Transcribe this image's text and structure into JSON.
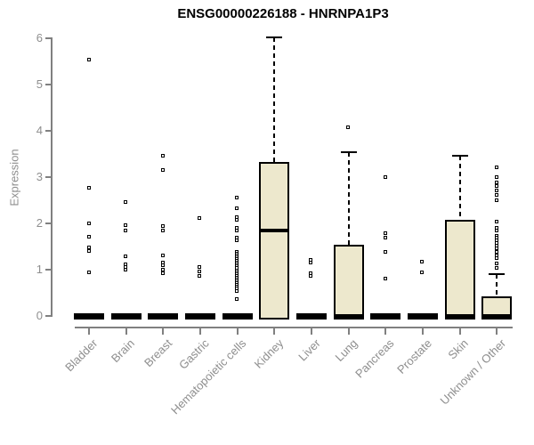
{
  "colors": {
    "box_fill": "#EDE8CD",
    "box_border": "#000000",
    "axis_line": "#808080",
    "axis_text": "#8E8E8E",
    "title_text": "#000000",
    "background": "#FFFFFF"
  },
  "chart_data": {
    "type": "boxplot",
    "title": "ENSG00000226188 - HNRNPA1P3",
    "xlabel": "",
    "ylabel": "Expression",
    "ylim": [
      0,
      6
    ],
    "yticks": [
      "0",
      "1",
      "2",
      "3",
      "4",
      "5",
      "6"
    ],
    "grid": false,
    "legend": "none",
    "categories": [
      "Bladder",
      "Brain",
      "Breast",
      "Gastric",
      "Hematopoietic cells",
      "Kidney",
      "Liver",
      "Lung",
      "Pancreas",
      "Prostate",
      "Skin",
      "Unknown / Other"
    ],
    "boxes": [
      {
        "category": "Bladder",
        "q1": 0,
        "median": 0,
        "q3": 0,
        "whisker_high": 0,
        "outliers": [
          5.52,
          2.76,
          2.0,
          1.7,
          1.48,
          1.4,
          0.93
        ]
      },
      {
        "category": "Brain",
        "q1": 0,
        "median": 0,
        "q3": 0,
        "whisker_high": 0,
        "outliers": [
          2.45,
          1.96,
          1.84,
          1.28,
          1.1,
          1.04,
          0.99
        ]
      },
      {
        "category": "Breast",
        "q1": 0,
        "median": 0,
        "q3": 0,
        "whisker_high": 0,
        "outliers": [
          3.45,
          3.14,
          1.94,
          1.84,
          1.29,
          1.14,
          1.09,
          0.99,
          0.91
        ]
      },
      {
        "category": "Gastric",
        "q1": 0,
        "median": 0,
        "q3": 0,
        "whisker_high": 0,
        "outliers": [
          2.1,
          1.05,
          0.96,
          0.86
        ]
      },
      {
        "category": "Hematopoietic cells",
        "q1": 0,
        "median": 0,
        "q3": 0,
        "whisker_high": 0,
        "outliers": [
          2.55,
          2.31,
          2.12,
          2.06,
          1.9,
          1.84,
          1.68,
          1.62,
          1.38,
          1.34,
          1.3,
          1.26,
          1.22,
          1.18,
          1.14,
          1.1,
          1.06,
          1.02,
          0.98,
          0.94,
          0.9,
          0.86,
          0.82,
          0.78,
          0.74,
          0.7,
          0.66,
          0.62,
          0.58,
          0.52,
          0.35
        ]
      },
      {
        "category": "Kidney",
        "q1": 0,
        "median": 1.84,
        "q3": 3.33,
        "whisker_high": 6.02,
        "outliers": []
      },
      {
        "category": "Liver",
        "q1": 0,
        "median": 0,
        "q3": 0,
        "whisker_high": 0,
        "outliers": [
          1.21,
          1.15,
          0.92,
          0.85
        ]
      },
      {
        "category": "Lung",
        "q1": 0,
        "median": 0,
        "q3": 1.54,
        "whisker_high": 3.54,
        "outliers": [
          4.07
        ]
      },
      {
        "category": "Pancreas",
        "q1": 0,
        "median": 0,
        "q3": 0,
        "whisker_high": 0,
        "outliers": [
          3.0,
          1.78,
          1.68,
          1.38,
          0.8
        ]
      },
      {
        "category": "Prostate",
        "q1": 0,
        "median": 0,
        "q3": 0,
        "whisker_high": 0,
        "outliers": [
          1.17,
          0.94
        ]
      },
      {
        "category": "Skin",
        "q1": 0,
        "median": 0,
        "q3": 2.08,
        "whisker_high": 3.46,
        "outliers": []
      },
      {
        "category": "Unknown / Other",
        "q1": 0,
        "median": 0,
        "q3": 0.43,
        "whisker_high": 0.9,
        "outliers": [
          3.21,
          3.0,
          2.88,
          2.79,
          2.71,
          2.6,
          2.5,
          2.02,
          1.9,
          1.84,
          1.73,
          1.68,
          1.63,
          1.57,
          1.51,
          1.45,
          1.38,
          1.3,
          1.24,
          1.12,
          1.02
        ]
      }
    ]
  }
}
